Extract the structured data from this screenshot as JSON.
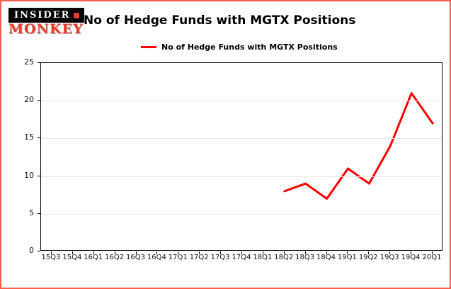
{
  "logo": {
    "line1": "INSIDER",
    "line2": "MONKEY"
  },
  "header": {
    "title": "No of Hedge Funds with MGTX Positions"
  },
  "legend": {
    "label": "No of Hedge Funds with MGTX Positions",
    "color": "#ff0000"
  },
  "chart_data": {
    "type": "line",
    "title": "No of Hedge Funds with MGTX Positions",
    "series_name": "No of Hedge Funds with MGTX Positions",
    "categories": [
      "15Q3",
      "15Q4",
      "16Q1",
      "16Q2",
      "16Q3",
      "16Q4",
      "17Q1",
      "17Q2",
      "17Q3",
      "17Q4",
      "18Q1",
      "18Q2",
      "18Q3",
      "18Q4",
      "19Q1",
      "19Q2",
      "19Q3",
      "19Q4",
      "20Q1"
    ],
    "values": [
      null,
      null,
      null,
      null,
      null,
      null,
      null,
      null,
      null,
      null,
      null,
      8,
      9,
      7,
      11,
      9,
      14,
      21,
      17
    ],
    "ylim": [
      0,
      25
    ],
    "yticks": [
      0,
      5,
      10,
      15,
      20,
      25
    ],
    "line_color": "#ff0000",
    "grid": true,
    "legend_position": "top"
  }
}
